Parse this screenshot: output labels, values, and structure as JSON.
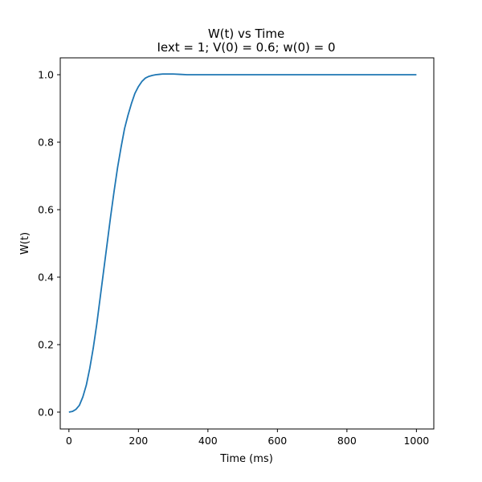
{
  "chart_data": {
    "type": "line",
    "title": "W(t) vs Time",
    "subtitle": "Iext = 1; V(0) = 0.6; w(0) = 0",
    "xlabel": "Time (ms)",
    "ylabel": "W(t)",
    "xlim": [
      -25,
      1050
    ],
    "ylim": [
      -0.05,
      1.05
    ],
    "x_ticks": [
      0,
      200,
      400,
      600,
      800,
      1000
    ],
    "x_tick_labels": [
      "0",
      "200",
      "400",
      "600",
      "800",
      "1000"
    ],
    "y_ticks": [
      0.0,
      0.2,
      0.4,
      0.6,
      0.8,
      1.0
    ],
    "y_tick_labels": [
      "0.0",
      "0.2",
      "0.4",
      "0.6",
      "0.8",
      "1.0"
    ],
    "grid": false,
    "legend": "none",
    "series": [
      {
        "color": "#1f77b4",
        "x": [
          0,
          10,
          20,
          30,
          40,
          50,
          60,
          70,
          80,
          90,
          100,
          110,
          120,
          130,
          140,
          150,
          160,
          170,
          180,
          190,
          200,
          210,
          220,
          230,
          240,
          250,
          260,
          270,
          280,
          290,
          300,
          320,
          340,
          360,
          380,
          400,
          500,
          600,
          700,
          800,
          900,
          1000
        ],
        "y": [
          0.0,
          0.002,
          0.008,
          0.02,
          0.045,
          0.08,
          0.13,
          0.19,
          0.26,
          0.34,
          0.42,
          0.5,
          0.58,
          0.655,
          0.725,
          0.785,
          0.84,
          0.88,
          0.915,
          0.945,
          0.965,
          0.98,
          0.99,
          0.995,
          0.998,
          1.0,
          1.001,
          1.002,
          1.002,
          1.002,
          1.002,
          1.001,
          1.0,
          1.0,
          1.0,
          1.0,
          1.0,
          1.0,
          1.0,
          1.0,
          1.0,
          1.0
        ]
      }
    ]
  }
}
